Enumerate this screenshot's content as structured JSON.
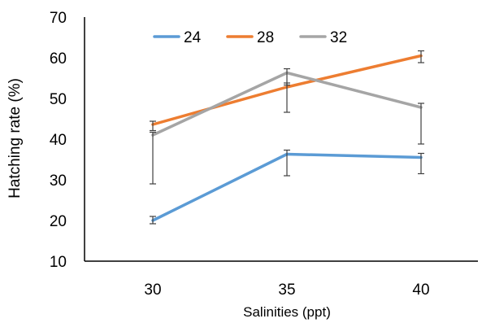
{
  "chart_data": {
    "type": "line",
    "xlabel": "Salinities (ppt)",
    "ylabel": "Hatching rate (%)",
    "categories": [
      "30",
      "35",
      "40"
    ],
    "ylim": [
      10,
      70
    ],
    "yticks": [
      "10",
      "20",
      "30",
      "40",
      "50",
      "60",
      "70"
    ],
    "grid": false,
    "legend_position": "top",
    "series": [
      {
        "name": "24",
        "color": "#5B9BD5",
        "values": [
          20,
          36.3,
          35.5
        ],
        "err_lo": [
          0.8,
          5.3,
          4
        ],
        "err_hi": [
          1,
          1,
          1
        ]
      },
      {
        "name": "28",
        "color": "#ED7D31",
        "values": [
          43.6,
          52.8,
          60.5
        ],
        "err_lo": [
          1.5,
          6.2,
          1.7
        ],
        "err_hi": [
          0.8,
          1,
          1.2
        ]
      },
      {
        "name": "32",
        "color": "#A5A5A5",
        "values": [
          41,
          56.3,
          47.8
        ],
        "err_lo": [
          12,
          3,
          9
        ],
        "err_hi": [
          0.7,
          1,
          1
        ]
      }
    ]
  }
}
